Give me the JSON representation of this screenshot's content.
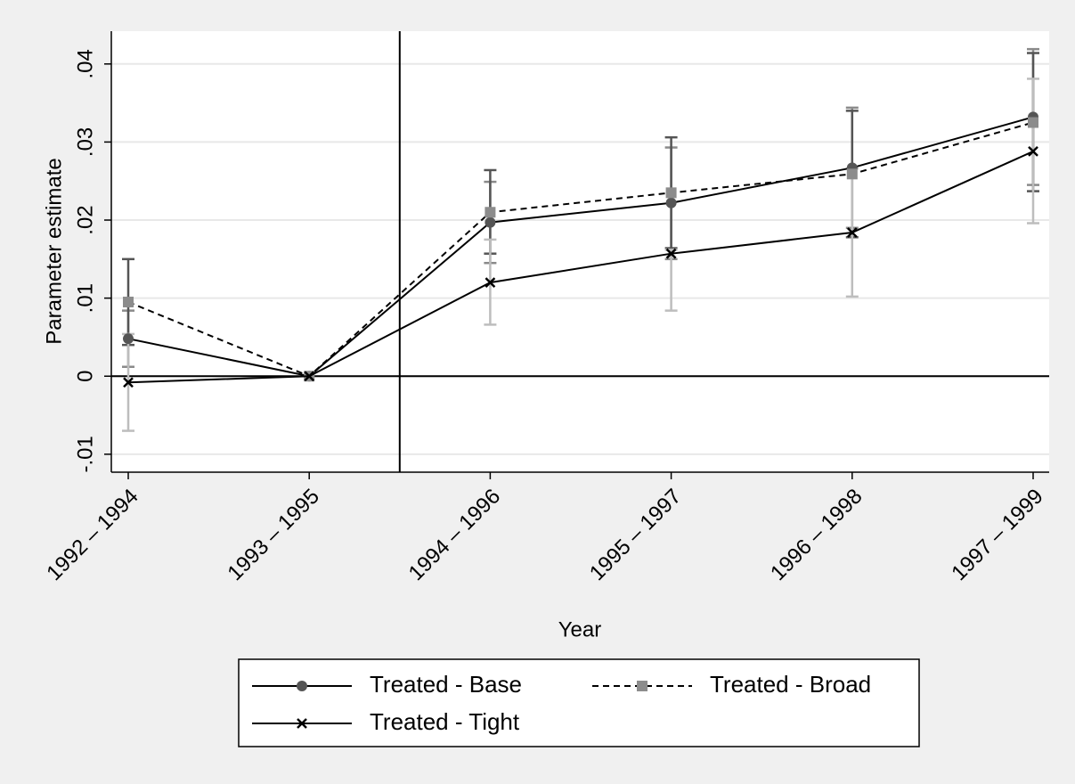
{
  "chart_data": {
    "type": "line",
    "x_label": "Year",
    "y_label": "Parameter estimate",
    "categories": [
      "1992 – 1994",
      "1993 – 1995",
      "1994 – 1996",
      "1995 – 1997",
      "1996 – 1998",
      "1997 – 1999"
    ],
    "ylim": [
      -0.0123,
      0.0442
    ],
    "yticks": [
      {
        "value": -0.01,
        "label": "-.01"
      },
      {
        "value": 0,
        "label": "0"
      },
      {
        "value": 0.01,
        "label": ".01"
      },
      {
        "value": 0.02,
        "label": ".02"
      },
      {
        "value": 0.03,
        "label": ".03"
      },
      {
        "value": 0.04,
        "label": ".04"
      }
    ],
    "grid": true,
    "yline": 0,
    "xline": 1.5,
    "series": [
      {
        "name": "Treated - Base",
        "color": "#000000",
        "marker": "circle",
        "marker_color": "#555555",
        "dash": "solid",
        "ci_color": "#8a8a8a",
        "values": [
          0.0048,
          0,
          0.0197,
          0.0222,
          0.0267,
          0.0332
        ],
        "ci_low": [
          0.0012,
          null,
          0.0145,
          0.015,
          0.019,
          0.0245
        ],
        "ci_high": [
          0.0084,
          null,
          0.0249,
          0.0293,
          0.0344,
          0.0419
        ]
      },
      {
        "name": "Treated - Broad",
        "color": "#000000",
        "marker": "square",
        "marker_color": "#8c8c8c",
        "dash": "dashed",
        "ci_color": "#555555",
        "values": [
          0.0095,
          0,
          0.021,
          0.0235,
          0.0259,
          0.0325
        ],
        "ci_low": [
          0.004,
          null,
          0.0157,
          0.0164,
          0.0178,
          0.0237
        ],
        "ci_high": [
          0.015,
          null,
          0.0264,
          0.0306,
          0.034,
          0.0414
        ]
      },
      {
        "name": "Treated - Tight",
        "color": "#000000",
        "marker": "x",
        "marker_color": "#000000",
        "dash": "solid",
        "ci_color": "#bdbdbd",
        "values": [
          -0.0008,
          0,
          0.012,
          0.0157,
          0.0184,
          0.0288
        ],
        "ci_low": [
          -0.007,
          null,
          0.0066,
          0.0084,
          0.0102,
          0.0196
        ],
        "ci_high": [
          0.0054,
          null,
          0.0175,
          0.0162,
          0.0266,
          0.0381
        ]
      }
    ]
  }
}
